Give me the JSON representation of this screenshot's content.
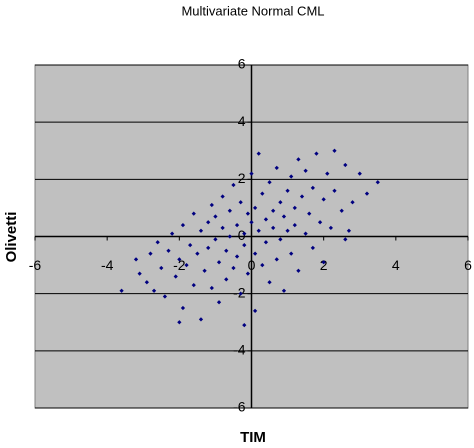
{
  "chart_data": {
    "type": "scatter",
    "title": "Multivariate Normal CML",
    "x_label": "TIM",
    "y_label": "Olivetti",
    "color": "#000080",
    "grid": true,
    "xlim": [
      -6,
      6
    ],
    "ylim": [
      -6,
      6
    ],
    "xticks": [
      -6,
      -4,
      -2,
      0,
      2,
      4,
      6
    ],
    "yticks": [
      -6,
      -4,
      -2,
      0,
      2,
      4,
      6
    ],
    "x": [
      -3.2,
      -3.1,
      -2.9,
      -2.8,
      -2.7,
      -2.6,
      -2.5,
      -2.4,
      -2.3,
      -2.2,
      -2.1,
      -2.0,
      -1.9,
      -1.9,
      -1.8,
      -1.7,
      -1.6,
      -1.6,
      -1.5,
      -1.4,
      -1.4,
      -1.3,
      -1.2,
      -1.2,
      -1.1,
      -1.1,
      -1.0,
      -1.0,
      -0.9,
      -0.9,
      -0.8,
      -0.8,
      -0.7,
      -0.7,
      -0.6,
      -0.6,
      -0.5,
      -0.5,
      -0.4,
      -0.4,
      -0.3,
      -0.3,
      -0.2,
      -0.2,
      -0.1,
      -0.1,
      0.0,
      0.0,
      0.1,
      0.1,
      0.1,
      0.2,
      0.2,
      0.3,
      0.3,
      0.4,
      0.4,
      0.5,
      0.5,
      0.6,
      0.6,
      0.7,
      0.7,
      0.8,
      0.8,
      0.9,
      0.9,
      1.0,
      1.0,
      1.1,
      1.1,
      1.2,
      1.2,
      1.3,
      1.3,
      1.4,
      1.5,
      1.5,
      1.6,
      1.7,
      1.7,
      1.8,
      1.9,
      2.0,
      2.0,
      2.1,
      2.2,
      2.3,
      2.3,
      2.5,
      2.6,
      2.7,
      2.8,
      3.0,
      3.2,
      3.5,
      2.6,
      -2.0,
      -0.2,
      -3.6
    ],
    "y": [
      -0.8,
      -1.3,
      -1.6,
      -0.6,
      -1.9,
      -0.2,
      -1.1,
      -2.1,
      -0.5,
      0.1,
      -1.4,
      -0.8,
      0.4,
      -2.5,
      -1.0,
      -0.3,
      0.8,
      -1.7,
      -0.6,
      0.2,
      -2.9,
      -1.2,
      0.5,
      -0.4,
      1.1,
      -1.8,
      -0.1,
      0.7,
      -0.9,
      -2.3,
      0.3,
      1.4,
      -0.5,
      -1.5,
      0.9,
      0.0,
      -1.1,
      1.8,
      0.4,
      -0.7,
      -2.0,
      1.2,
      0.1,
      -0.3,
      0.8,
      -1.3,
      0.5,
      2.2,
      -0.6,
      1.0,
      -2.6,
      0.2,
      2.9,
      -1.0,
      1.5,
      0.6,
      -0.2,
      1.9,
      -1.6,
      0.9,
      0.3,
      -0.8,
      2.4,
      1.2,
      -0.1,
      0.7,
      -1.9,
      1.6,
      0.2,
      2.1,
      -0.6,
      1.0,
      0.4,
      2.7,
      -1.2,
      1.4,
      0.1,
      2.3,
      0.8,
      -0.4,
      1.7,
      2.9,
      0.5,
      1.3,
      -0.9,
      2.2,
      0.3,
      1.6,
      3.0,
      0.9,
      2.5,
      0.2,
      1.2,
      2.2,
      1.5,
      1.9,
      -0.1,
      -3.0,
      -3.1,
      -1.9
    ]
  }
}
